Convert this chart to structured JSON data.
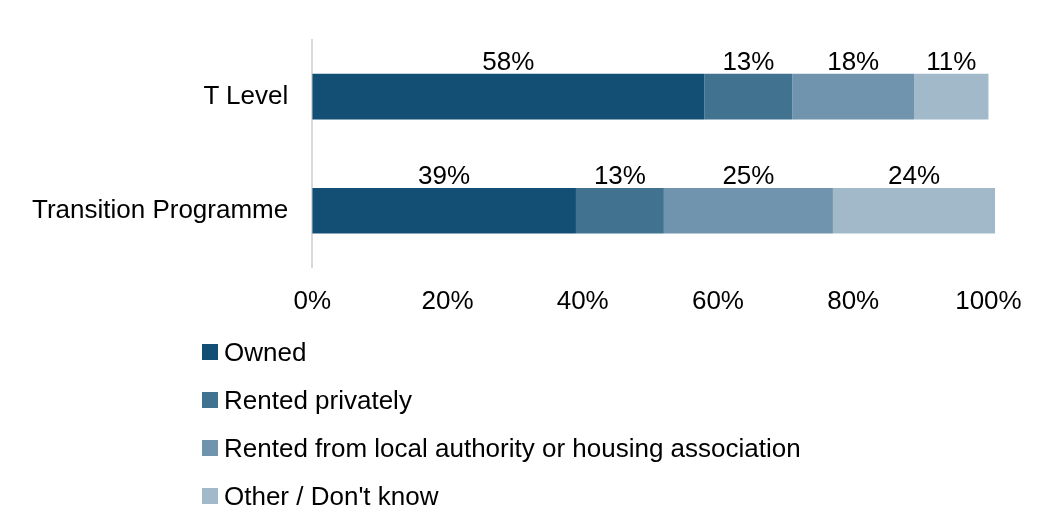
{
  "chart_data": {
    "type": "bar",
    "orientation": "horizontal",
    "stacked": true,
    "categories": [
      "T Level",
      "Transition Programme"
    ],
    "series": [
      {
        "name": "Owned",
        "color": "#134f74",
        "values": [
          58,
          39
        ],
        "value_labels": [
          "58%",
          "39%"
        ]
      },
      {
        "name": "Rented privately",
        "color": "#41728f",
        "values": [
          13,
          13
        ],
        "value_labels": [
          "13%",
          "13%"
        ]
      },
      {
        "name": "Rented from local authority or housing association",
        "color": "#7094ad",
        "values": [
          18,
          25
        ],
        "value_labels": [
          "18%",
          "25%"
        ]
      },
      {
        "name": "Other / Don't know",
        "color": "#a2b9c9",
        "values": [
          11,
          24
        ],
        "value_labels": [
          "11%",
          "24%"
        ]
      }
    ],
    "xlim": [
      0,
      101
    ],
    "xticks": [
      {
        "value": 0,
        "label": "0%"
      },
      {
        "value": 20,
        "label": "20%"
      },
      {
        "value": 40,
        "label": "40%"
      },
      {
        "value": 60,
        "label": "60%"
      },
      {
        "value": 80,
        "label": "80%"
      },
      {
        "value": 100,
        "label": "100%"
      }
    ],
    "grid": false,
    "legend": "bottom"
  }
}
